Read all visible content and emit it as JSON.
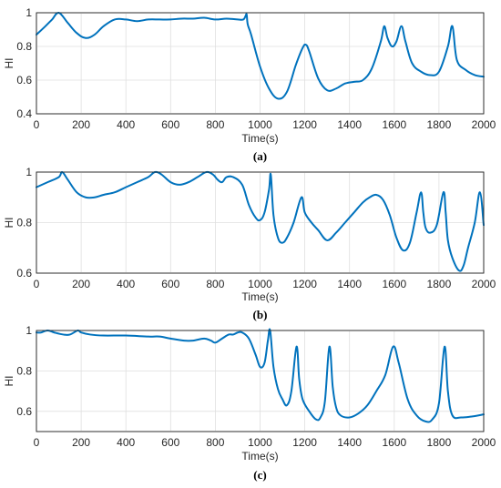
{
  "chart_data": [
    {
      "type": "line",
      "caption": "(a)",
      "xlabel": "Time(s)",
      "ylabel": "HI",
      "xlim": [
        0,
        2000
      ],
      "ylim": [
        0.4,
        1.0
      ],
      "xticks": [
        0,
        200,
        400,
        600,
        800,
        1000,
        1200,
        1400,
        1600,
        1800,
        2000
      ],
      "yticks": [
        0.4,
        0.6,
        0.8,
        1
      ],
      "grid": true,
      "color": "#0072BD",
      "series": [
        {
          "x": [
            0,
            40,
            70,
            100,
            140,
            180,
            220,
            260,
            300,
            350,
            400,
            450,
            500,
            550,
            600,
            650,
            700,
            750,
            800,
            850,
            900,
            925,
            935,
            940,
            945,
            960,
            1000,
            1040,
            1080,
            1120,
            1160,
            1190,
            1205,
            1220,
            1260,
            1300,
            1340,
            1380,
            1420,
            1460,
            1500,
            1540,
            1555,
            1570,
            1590,
            1610,
            1632,
            1650,
            1680,
            1720,
            1760,
            1800,
            1840,
            1860,
            1880,
            1920,
            1960,
            2000
          ],
          "y": [
            0.87,
            0.92,
            0.96,
            1.0,
            0.94,
            0.88,
            0.85,
            0.87,
            0.92,
            0.96,
            0.96,
            0.95,
            0.96,
            0.96,
            0.96,
            0.965,
            0.965,
            0.97,
            0.96,
            0.965,
            0.96,
            0.96,
            0.98,
            0.99,
            0.93,
            0.87,
            0.68,
            0.55,
            0.49,
            0.53,
            0.69,
            0.79,
            0.81,
            0.77,
            0.61,
            0.54,
            0.55,
            0.58,
            0.59,
            0.6,
            0.67,
            0.83,
            0.92,
            0.85,
            0.8,
            0.83,
            0.92,
            0.83,
            0.7,
            0.65,
            0.63,
            0.65,
            0.8,
            0.92,
            0.72,
            0.66,
            0.63,
            0.62
          ]
        }
      ]
    },
    {
      "type": "line",
      "caption": "(b)",
      "xlabel": "Time(s)",
      "ylabel": "HI",
      "xlim": [
        0,
        2000
      ],
      "ylim": [
        0.6,
        1.0
      ],
      "xticks": [
        0,
        200,
        400,
        600,
        800,
        1000,
        1200,
        1400,
        1600,
        1800,
        2000
      ],
      "yticks": [
        0.6,
        0.8,
        1
      ],
      "grid": true,
      "color": "#0072BD",
      "series": [
        {
          "x": [
            0,
            50,
            100,
            115,
            140,
            180,
            220,
            260,
            300,
            350,
            400,
            450,
            500,
            530,
            560,
            600,
            640,
            680,
            720,
            760,
            790,
            810,
            830,
            850,
            880,
            920,
            950,
            980,
            1000,
            1020,
            1040,
            1048,
            1060,
            1080,
            1100,
            1120,
            1150,
            1185,
            1200,
            1230,
            1260,
            1300,
            1340,
            1380,
            1420,
            1460,
            1490,
            1520,
            1550,
            1580,
            1610,
            1640,
            1670,
            1700,
            1720,
            1730,
            1740,
            1760,
            1790,
            1820,
            1830,
            1840,
            1860,
            1890,
            1910,
            1930,
            1960,
            1983,
            2000
          ],
          "y": [
            0.94,
            0.96,
            0.98,
            1.0,
            0.97,
            0.92,
            0.9,
            0.9,
            0.91,
            0.92,
            0.94,
            0.96,
            0.98,
            1.0,
            0.99,
            0.96,
            0.95,
            0.96,
            0.98,
            1.0,
            0.99,
            0.97,
            0.96,
            0.98,
            0.98,
            0.95,
            0.87,
            0.82,
            0.81,
            0.84,
            0.93,
            0.99,
            0.83,
            0.74,
            0.72,
            0.74,
            0.8,
            0.9,
            0.84,
            0.8,
            0.77,
            0.73,
            0.76,
            0.8,
            0.84,
            0.88,
            0.9,
            0.91,
            0.89,
            0.83,
            0.74,
            0.69,
            0.72,
            0.84,
            0.92,
            0.84,
            0.78,
            0.76,
            0.79,
            0.92,
            0.84,
            0.73,
            0.66,
            0.61,
            0.63,
            0.7,
            0.8,
            0.92,
            0.79
          ]
        }
      ]
    },
    {
      "type": "line",
      "caption": "(c)",
      "xlabel": "Time(s)",
      "ylabel": "HI",
      "xlim": [
        0,
        2000
      ],
      "ylim": [
        0.5,
        1.0
      ],
      "xticks": [
        0,
        200,
        400,
        600,
        800,
        1000,
        1200,
        1400,
        1600,
        1800,
        2000
      ],
      "yticks": [
        0.6,
        0.8,
        1
      ],
      "grid": true,
      "color": "#0072BD",
      "series": [
        {
          "x": [
            0,
            20,
            50,
            80,
            120,
            150,
            185,
            200,
            240,
            300,
            400,
            500,
            550,
            600,
            660,
            700,
            750,
            780,
            800,
            830,
            860,
            880,
            900,
            920,
            950,
            980,
            1000,
            1020,
            1035,
            1045,
            1060,
            1080,
            1100,
            1120,
            1140,
            1163,
            1175,
            1190,
            1220,
            1250,
            1270,
            1290,
            1310,
            1325,
            1340,
            1360,
            1400,
            1440,
            1480,
            1520,
            1560,
            1595,
            1620,
            1660,
            1700,
            1740,
            1770,
            1800,
            1825,
            1840,
            1860,
            1900,
            1950,
            2000
          ],
          "y": [
            0.99,
            0.99,
            1.0,
            0.99,
            0.98,
            0.98,
            1.0,
            0.99,
            0.98,
            0.975,
            0.975,
            0.97,
            0.97,
            0.96,
            0.95,
            0.95,
            0.96,
            0.95,
            0.94,
            0.96,
            0.98,
            0.98,
            0.99,
            0.99,
            0.96,
            0.88,
            0.82,
            0.84,
            0.95,
            1.0,
            0.82,
            0.71,
            0.66,
            0.63,
            0.7,
            0.92,
            0.76,
            0.66,
            0.6,
            0.56,
            0.57,
            0.65,
            0.92,
            0.72,
            0.62,
            0.58,
            0.57,
            0.59,
            0.63,
            0.7,
            0.78,
            0.92,
            0.84,
            0.66,
            0.58,
            0.55,
            0.56,
            0.64,
            0.92,
            0.7,
            0.58,
            0.57,
            0.575,
            0.585
          ]
        }
      ]
    }
  ]
}
